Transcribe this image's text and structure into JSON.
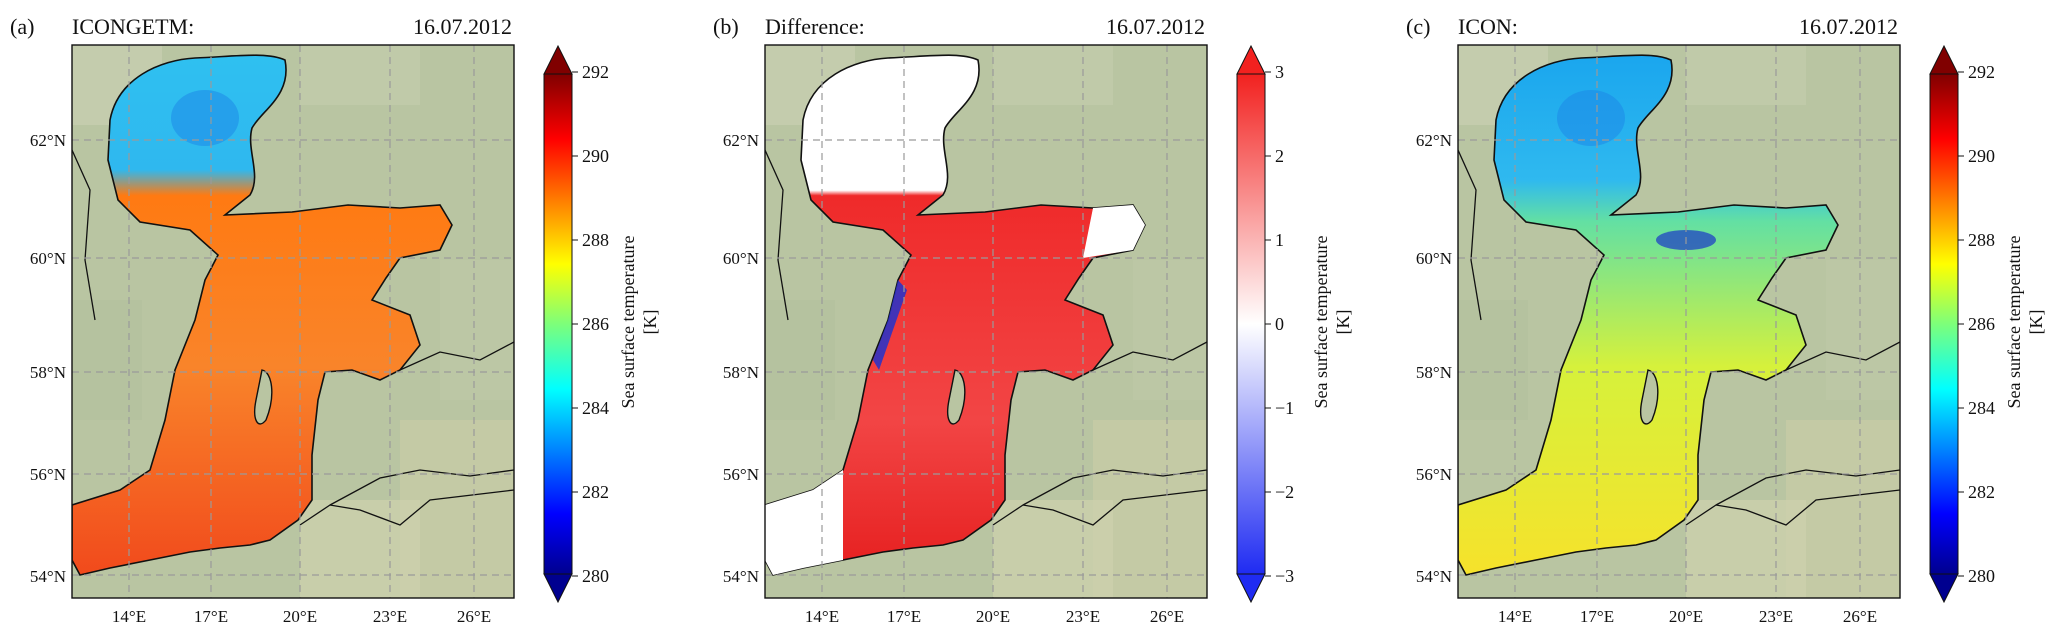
{
  "panels": [
    {
      "letter": "(a)",
      "title": "ICONGETM:",
      "date": "16.07.2012",
      "colormap": "jet",
      "fill_mode": "warm",
      "colorbar": {
        "label_line1": "Sea surface temperature",
        "label_line2": "[K]",
        "ticks": [
          "280",
          "282",
          "284",
          "286",
          "288",
          "290",
          "292"
        ]
      }
    },
    {
      "letter": "(b)",
      "title": "Difference:",
      "date": "16.07.2012",
      "colormap": "bwr",
      "fill_mode": "diff",
      "colorbar": {
        "label_line1": "Sea surface temperature",
        "label_line2": "[K]",
        "ticks": [
          "−3",
          "−2",
          "−1",
          "0",
          "1",
          "2",
          "3"
        ]
      }
    },
    {
      "letter": "(c)",
      "title": "ICON:",
      "date": "16.07.2012",
      "colormap": "jet",
      "fill_mode": "cool",
      "colorbar": {
        "label_line1": "Sea surface temperature",
        "label_line2": "[K]",
        "ticks": [
          "280",
          "282",
          "284",
          "286",
          "288",
          "290",
          "292"
        ]
      }
    }
  ],
  "map": {
    "lat_labels": [
      "54°N",
      "56°N",
      "58°N",
      "60°N",
      "62°N"
    ],
    "lon_labels": [
      "14°E",
      "17°E",
      "20°E",
      "23°E",
      "26°E"
    ]
  },
  "colors": {
    "land": "#b9c5a2",
    "coast": "#111111",
    "grid": "#9a9a9a"
  }
}
